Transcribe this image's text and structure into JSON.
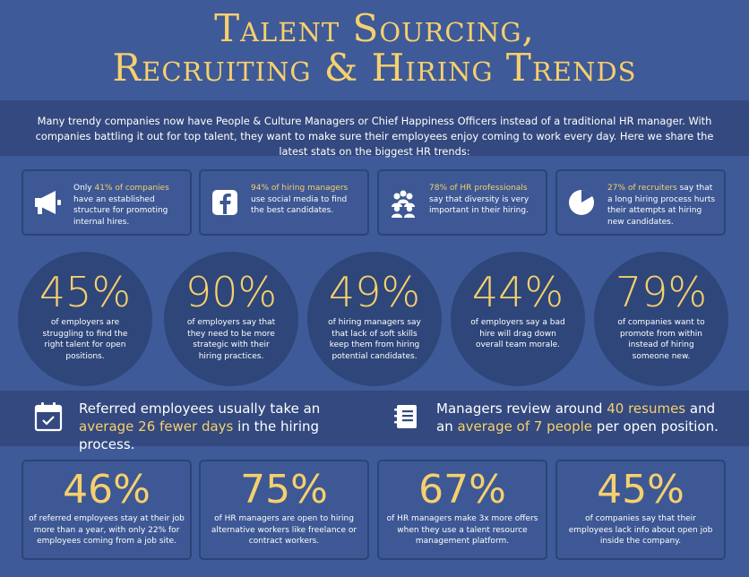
{
  "title": {
    "line1": "Talent Sourcing,",
    "line2": "Recruiting & Hiring Trends"
  },
  "intro": "Many trendy companies now have People & Culture Managers or Chief Happiness Officers instead of a traditional HR manager. With companies battling it out for top talent, they want to make sure their employees enjoy coming to work every day. Here we share the latest stats on the biggest HR trends:",
  "colors": {
    "accent": "#f5d06e",
    "background": "#3f5a98",
    "band": "#33497f",
    "circle": "#2e4679"
  },
  "cards": [
    {
      "icon": "megaphone-icon",
      "before": "Only ",
      "highlight": "41% of companies",
      "after": " have an established structure for promoting internal hires."
    },
    {
      "icon": "facebook-icon",
      "before": "",
      "highlight": "94% of hiring managers",
      "after": " use social media to find the best candidates."
    },
    {
      "icon": "people-group-icon",
      "before": "",
      "highlight": "78% of HR professionals",
      "after": " say that diversity is very important in their hiring."
    },
    {
      "icon": "clock-pie-icon",
      "before": "",
      "highlight": "27% of recruiters",
      "after": " say that a long hiring process hurts their attempts at hiring new candidates."
    }
  ],
  "circles": [
    {
      "value": "45%",
      "text": "of employers are struggling to find the right talent for open positions."
    },
    {
      "value": "90%",
      "text": "of employers say that they need to be more strategic with their hiring practices."
    },
    {
      "value": "49%",
      "text": "of hiring managers say that lack of soft skills keep them from hiring potential candidates."
    },
    {
      "value": "44%",
      "text": "of employers say a bad hire will drag down overall team morale."
    },
    {
      "value": "79%",
      "text": "of companies want to promote from within instead of hiring someone new."
    }
  ],
  "referred": {
    "icon": "calendar-check-icon",
    "line1": "Referred employees usually take an",
    "highlight": "average 26 fewer days",
    "after": " in the hiring process."
  },
  "resumes": {
    "icon": "notebook-icon",
    "before": "Managers review around ",
    "highlight1": "40 resumes",
    "middle": " and an ",
    "highlight2": "average of 7 people",
    "after": " per open position."
  },
  "bottom_cards": [
    {
      "value": "46%",
      "text": "of referred employees stay at their job more than a year, with only 22% for employees coming from a job site."
    },
    {
      "value": "75%",
      "text": "of HR managers are open to hiring alternative workers like freelance or contract workers."
    },
    {
      "value": "67%",
      "text": "of HR managers make 3x more offers when they use a talent resource management platform."
    },
    {
      "value": "45%",
      "text": "of companies say that their employees lack info about open job inside the company."
    }
  ]
}
